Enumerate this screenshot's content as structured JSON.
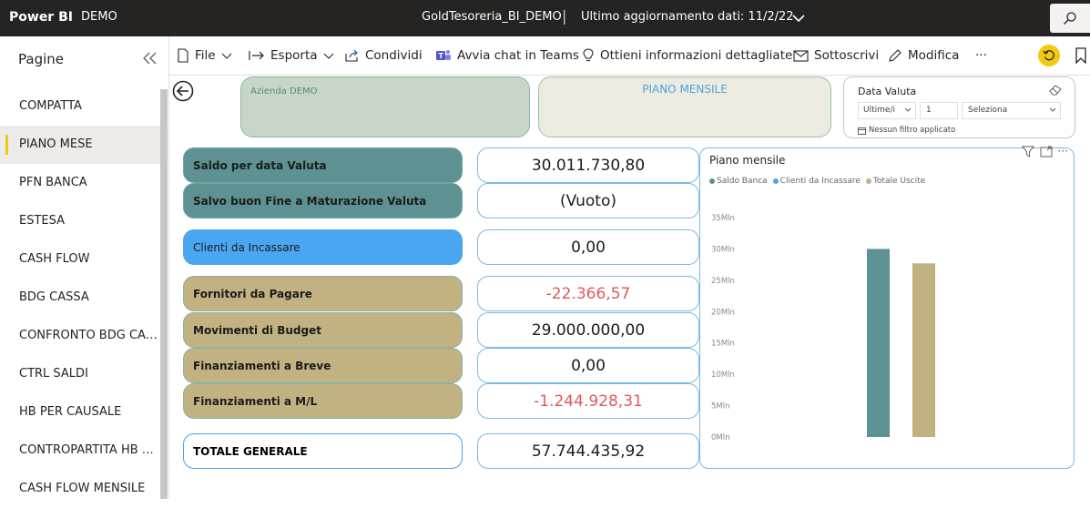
{
  "topbar": {
    "brand": "Power BI",
    "workspace": "DEMO",
    "report_name": "GoldTesoreria_BI_DEMO",
    "separator": "|",
    "last_update": "Ultimo aggiornamento dati: 11/2/22"
  },
  "pages_pane": {
    "title": "Pagine",
    "items": [
      {
        "label": "COMPATTA"
      },
      {
        "label": "PIANO MESE"
      },
      {
        "label": "PFN BANCA"
      },
      {
        "label": "ESTESA"
      },
      {
        "label": "CASH FLOW"
      },
      {
        "label": "BDG CASSA"
      },
      {
        "label": "CONFRONTO BDG CASSA"
      },
      {
        "label": "CTRL SALDI"
      },
      {
        "label": "HB PER CAUSALE"
      },
      {
        "label": "CONTROPARTITA HB PER CAUSALE"
      },
      {
        "label": "CASH FLOW MENSILE"
      }
    ],
    "active_index": 1
  },
  "actionbar": {
    "file": "File",
    "export": "Esporta",
    "share": "Condividi",
    "teams": "Avvia chat in Teams",
    "insights": "Ottieni informazioni dettagliate",
    "subscribe": "Sottoscrivi",
    "edit": "Modifica",
    "more": "···"
  },
  "report": {
    "company": "Azienda DEMO",
    "title": "PIANO MENSILE",
    "slicer": {
      "title": "Data Valuta",
      "mode": "Ultime/i",
      "count": "1",
      "unit_placeholder": "Seleziona",
      "status": "Nessun filtro applicato"
    },
    "rows": [
      {
        "label": "Saldo per data Valuta",
        "value": "30.011.730,80"
      },
      {
        "label": "Salvo buon Fine a Maturazione Valuta",
        "value": "(Vuoto)"
      },
      {
        "label": "Clienti da Incassare",
        "value": "0,00"
      },
      {
        "label": "Fornitori da Pagare",
        "value": "-22.366,57"
      },
      {
        "label": "Movimenti di Budget",
        "value": "29.000.000,00"
      },
      {
        "label": "Finanziamenti a Breve",
        "value": "0,00"
      },
      {
        "label": "Finanziamenti a M/L",
        "value": "-1.244.928,31"
      },
      {
        "label": "TOTALE GENERALE",
        "value": "57.744.435,92"
      }
    ]
  },
  "colors": {
    "teal": "#5e9292",
    "blue": "#4ba6f2",
    "tan": "#c2b282",
    "negative": "#e05a5a",
    "accent": "#f2c811"
  },
  "chart_data": {
    "type": "bar",
    "title": "Piano mensile",
    "legend_position": "top-left",
    "grid": false,
    "ylim": [
      0,
      35
    ],
    "y_ticks": [
      "0Mln",
      "5Mln",
      "10Mln",
      "15Mln",
      "20Mln",
      "25Mln",
      "30Mln",
      "35Mln"
    ],
    "categories": [
      ""
    ],
    "series": [
      {
        "name": "Saldo Banca",
        "color": "#5e9292",
        "values": [
          30.0
        ]
      },
      {
        "name": "Clienti da Incassare",
        "color": "#4ba6f2",
        "values": [
          0
        ]
      },
      {
        "name": "Totale Uscite",
        "color": "#c2b282",
        "values": [
          27.7
        ]
      }
    ]
  }
}
